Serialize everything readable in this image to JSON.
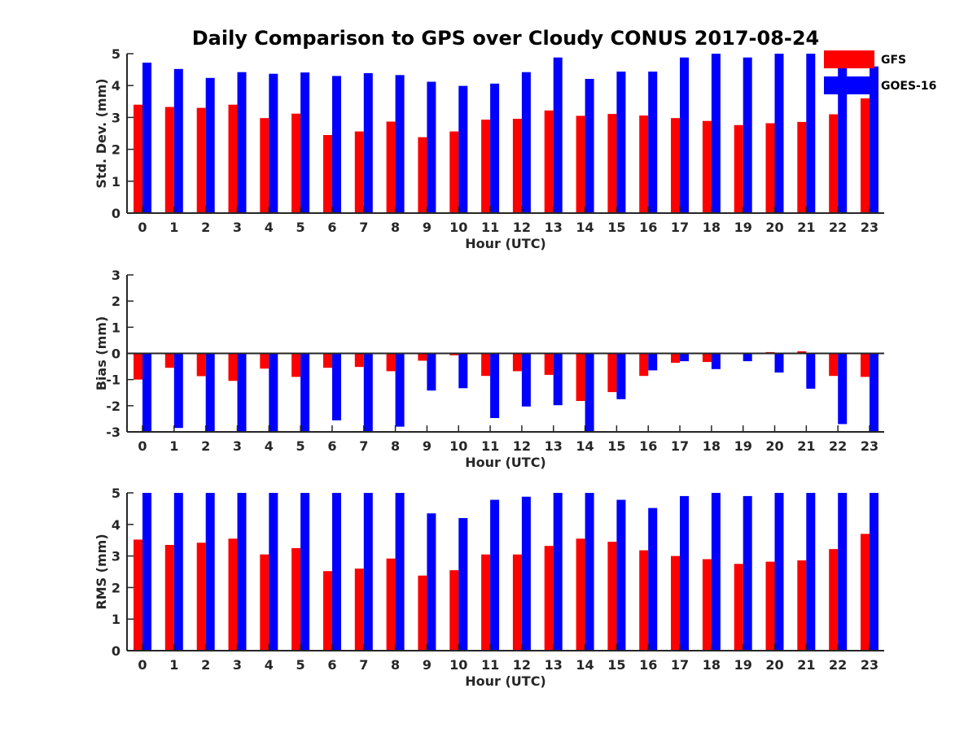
{
  "figure": {
    "title": "Daily Comparison to GPS over Cloudy CONUS 2017-08-24"
  },
  "legend": {
    "placement": "top-right",
    "items": [
      {
        "label": "GFS",
        "color": "#ff0000"
      },
      {
        "label": "GOES-16",
        "color": "#0000ff"
      }
    ]
  },
  "chart_data": [
    {
      "type": "bar",
      "title": "Daily Comparison to GPS over Cloudy CONUS 2017-08-24",
      "xlabel": "Hour (UTC)",
      "ylabel": "Std. Dev. (mm)",
      "ylim": [
        0,
        5
      ],
      "yticks": [
        0,
        1,
        2,
        3,
        4,
        5
      ],
      "grid": false,
      "categories": [
        "0",
        "1",
        "2",
        "3",
        "4",
        "5",
        "6",
        "7",
        "8",
        "9",
        "10",
        "11",
        "12",
        "13",
        "14",
        "15",
        "16",
        "17",
        "18",
        "19",
        "20",
        "21",
        "22",
        "23"
      ],
      "series": [
        {
          "name": "GFS",
          "color": "#ff0000",
          "values": [
            3.4,
            3.33,
            3.3,
            3.4,
            2.98,
            3.12,
            2.45,
            2.56,
            2.87,
            2.38,
            2.56,
            2.93,
            2.96,
            3.22,
            3.05,
            3.11,
            3.06,
            2.98,
            2.89,
            2.76,
            2.82,
            2.86,
            3.1,
            3.6
          ]
        },
        {
          "name": "GOES-16",
          "color": "#0000ff",
          "values": [
            4.72,
            4.52,
            4.24,
            4.42,
            4.37,
            4.41,
            4.3,
            4.39,
            4.33,
            4.12,
            3.99,
            4.06,
            4.42,
            4.88,
            4.21,
            4.44,
            4.44,
            4.88,
            5.0,
            4.88,
            5.0,
            5.0,
            4.77,
            4.6
          ]
        }
      ]
    },
    {
      "type": "bar",
      "xlabel": "Hour (UTC)",
      "ylabel": "Bias (mm)",
      "ylim": [
        -3,
        3
      ],
      "yticks": [
        -3,
        -2,
        -1,
        0,
        1,
        2,
        3
      ],
      "grid": false,
      "categories": [
        "0",
        "1",
        "2",
        "3",
        "4",
        "5",
        "6",
        "7",
        "8",
        "9",
        "10",
        "11",
        "12",
        "13",
        "14",
        "15",
        "16",
        "17",
        "18",
        "19",
        "20",
        "21",
        "22",
        "23"
      ],
      "series": [
        {
          "name": "GFS",
          "color": "#ff0000",
          "values": [
            -1.0,
            -0.55,
            -0.87,
            -1.05,
            -0.58,
            -0.9,
            -0.55,
            -0.52,
            -0.68,
            -0.28,
            -0.07,
            -0.86,
            -0.68,
            -0.82,
            -1.82,
            -1.48,
            -0.86,
            -0.36,
            -0.33,
            0.0,
            0.05,
            0.08,
            -0.86,
            -0.9
          ]
        },
        {
          "name": "GOES-16",
          "color": "#0000ff",
          "values": [
            -3.0,
            -2.85,
            -3.0,
            -3.0,
            -3.0,
            -3.0,
            -2.56,
            -3.0,
            -2.8,
            -1.42,
            -1.33,
            -2.47,
            -2.03,
            -1.98,
            -3.0,
            -1.75,
            -0.65,
            -0.3,
            -0.6,
            -0.3,
            -0.73,
            -1.35,
            -2.7,
            -3.0
          ]
        }
      ]
    },
    {
      "type": "bar",
      "xlabel": "Hour (UTC)",
      "ylabel": "RMS (mm)",
      "ylim": [
        0,
        5
      ],
      "yticks": [
        0,
        1,
        2,
        3,
        4,
        5
      ],
      "grid": false,
      "categories": [
        "0",
        "1",
        "2",
        "3",
        "4",
        "5",
        "6",
        "7",
        "8",
        "9",
        "10",
        "11",
        "12",
        "13",
        "14",
        "15",
        "16",
        "17",
        "18",
        "19",
        "20",
        "21",
        "22",
        "23"
      ],
      "series": [
        {
          "name": "GFS",
          "color": "#ff0000",
          "values": [
            3.52,
            3.35,
            3.42,
            3.55,
            3.05,
            3.25,
            2.52,
            2.6,
            2.92,
            2.38,
            2.55,
            3.05,
            3.05,
            3.32,
            3.55,
            3.45,
            3.18,
            3.0,
            2.9,
            2.75,
            2.82,
            2.86,
            3.22,
            3.7
          ]
        },
        {
          "name": "GOES-16",
          "color": "#0000ff",
          "values": [
            5.0,
            5.0,
            5.0,
            5.0,
            5.0,
            5.0,
            5.0,
            5.0,
            5.0,
            4.35,
            4.2,
            4.78,
            4.88,
            5.0,
            5.0,
            4.78,
            4.52,
            4.9,
            5.0,
            4.9,
            5.0,
            5.0,
            5.0,
            5.0
          ]
        }
      ]
    }
  ]
}
